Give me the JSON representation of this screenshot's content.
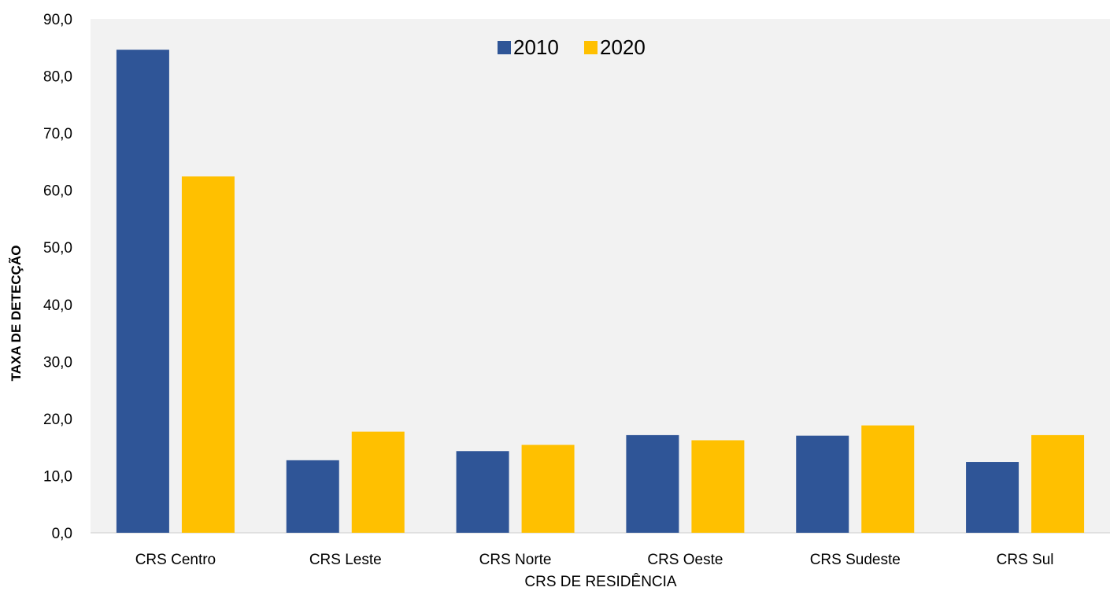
{
  "chart_data": {
    "type": "bar",
    "categories": [
      "CRS Centro",
      "CRS Leste",
      "CRS Norte",
      "CRS Oeste",
      "CRS Sudeste",
      "CRS Sul"
    ],
    "series": [
      {
        "name": "2010",
        "color": "#2f5597",
        "values": [
          84.6,
          12.7,
          14.3,
          17.1,
          17.0,
          12.4
        ]
      },
      {
        "name": "2020",
        "color": "#ffc000",
        "values": [
          62.4,
          17.7,
          15.4,
          16.2,
          18.8,
          17.1
        ]
      }
    ],
    "xlabel": "CRS DE RESIDÊNCIA",
    "ylabel": "TAXA DE DETECÇÃO",
    "ylim": [
      0,
      90
    ],
    "yticks": [
      "0,0",
      "10,0",
      "20,0",
      "30,0",
      "40,0",
      "50,0",
      "60,0",
      "70,0",
      "80,0",
      "90,0"
    ],
    "grid": false,
    "legend_position": "top-center",
    "plot_background": "#f2f2f2"
  }
}
